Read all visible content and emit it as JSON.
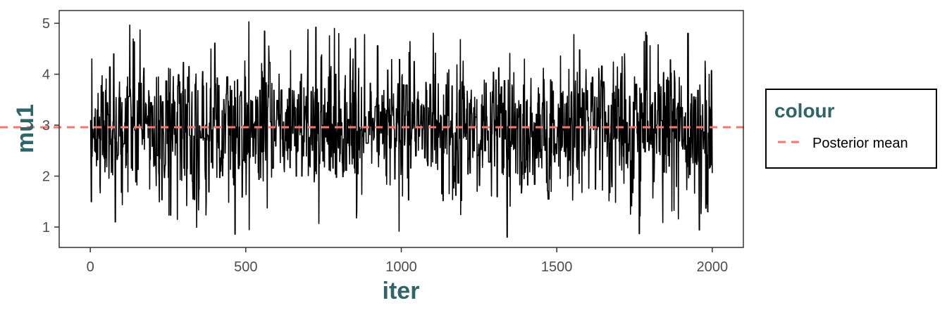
{
  "chart_data": {
    "type": "line",
    "xlabel": "iter",
    "ylabel": "mu1",
    "xlim": [
      -100,
      2100
    ],
    "ylim": [
      0.6,
      5.25
    ],
    "x_ticks": [
      0,
      500,
      1000,
      1500,
      2000
    ],
    "y_ticks": [
      1,
      2,
      3,
      4,
      5
    ],
    "grid": false,
    "legend_position": "right",
    "legend": {
      "title": "colour",
      "entries": [
        {
          "label": "Posterior mean",
          "style": "dashed",
          "color": "#F8766D"
        }
      ]
    },
    "series": [
      {
        "style": "solid",
        "color": "#000000",
        "n_iterations": 2000,
        "mean": 2.96,
        "sd": 0.7,
        "min": 0.8,
        "max": 5.03,
        "notable_points": [
          {
            "x": 1,
            "y": 3.1
          },
          {
            "x": 5,
            "y": 4.3
          },
          {
            "x": 20,
            "y": 2.2
          },
          {
            "x": 75,
            "y": 4.4
          },
          {
            "x": 80,
            "y": 1.1
          },
          {
            "x": 160,
            "y": 4.87
          },
          {
            "x": 240,
            "y": 2.2
          },
          {
            "x": 330,
            "y": 1.55
          },
          {
            "x": 465,
            "y": 0.86
          },
          {
            "x": 510,
            "y": 5.03
          },
          {
            "x": 735,
            "y": 1.07
          },
          {
            "x": 785,
            "y": 4.9
          },
          {
            "x": 1000,
            "y": 2.2
          },
          {
            "x": 1340,
            "y": 0.8
          },
          {
            "x": 1555,
            "y": 4.78
          },
          {
            "x": 1765,
            "y": 0.87
          },
          {
            "x": 1985,
            "y": 1.3
          },
          {
            "x": 2000,
            "y": 2.06
          }
        ]
      }
    ],
    "reference_lines": [
      {
        "name": "Posterior mean",
        "y": 2.96,
        "style": "dashed",
        "color": "#F8766D"
      }
    ],
    "colors": {
      "axis_title": "#2F6468",
      "trace": "#000000",
      "mean_line": "#F8766D",
      "tick_label": "#4D4D4D"
    }
  }
}
